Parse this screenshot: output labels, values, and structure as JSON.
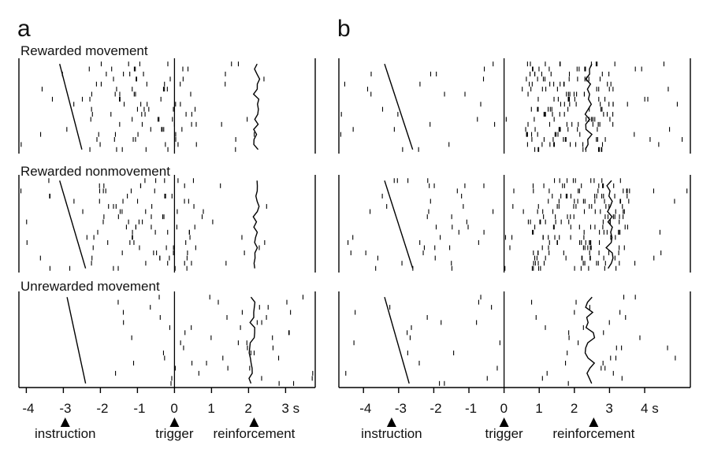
{
  "panel_labels": [
    "a",
    "b"
  ],
  "conditions": [
    "Rewarded movement",
    "Rewarded nonmovement",
    "Unrewarded movement"
  ],
  "events": [
    "instruction",
    "trigger",
    "reinforcement"
  ],
  "unit": "s",
  "ink": "#000000",
  "chart_data": [
    {
      "type": "scatter",
      "panel": "a",
      "xlim": [
        -4.2,
        3.8
      ],
      "xticks": [
        -4,
        -3,
        -2,
        -1,
        0,
        1,
        2,
        3
      ],
      "xtick_labels": [
        "-4",
        "-3",
        "-2",
        "-1",
        "0",
        "1",
        "2",
        "3 s"
      ],
      "event_times": {
        "instruction": -2.95,
        "trigger": 0,
        "reinforcement": 2.15
      },
      "rasters": [
        {
          "condition": "Rewarded movement",
          "trials": 18,
          "instruction_range": [
            -3.1,
            -2.5
          ],
          "reinforcement_range": [
            2.1,
            2.3
          ],
          "spike_windows": [
            [
              -4.2,
              2.6,
              0.35
            ],
            [
              -2.3,
              0.6,
              1.4
            ],
            [
              2.0,
              3.8,
              0.25
            ]
          ]
        },
        {
          "condition": "Rewarded nonmovement",
          "trials": 18,
          "instruction_range": [
            -3.1,
            -2.4
          ],
          "reinforcement_range": [
            2.1,
            2.3
          ],
          "spike_windows": [
            [
              -4.2,
              2.6,
              0.35
            ],
            [
              -2.3,
              0.6,
              1.4
            ],
            [
              2.0,
              3.8,
              0.25
            ]
          ]
        },
        {
          "condition": "Unrewarded movement",
          "trials": 18,
          "instruction_range": [
            -2.9,
            -2.4
          ],
          "reinforcement_range": [
            2.0,
            2.2
          ],
          "spike_windows": [
            [
              -4.2,
              -2.5,
              0.25
            ],
            [
              -1.6,
              0.3,
              0.35
            ],
            [
              0.3,
              3.8,
              0.55
            ]
          ]
        }
      ]
    },
    {
      "type": "scatter",
      "panel": "b",
      "xlim": [
        -4.7,
        5.3
      ],
      "xticks": [
        -4,
        -3,
        -2,
        -1,
        0,
        1,
        2,
        3,
        4
      ],
      "xtick_labels": [
        "-4",
        "-3",
        "-2",
        "-1",
        "0",
        "1",
        "2",
        "3",
        "4 s"
      ],
      "event_times": {
        "instruction": -3.2,
        "trigger": 0,
        "reinforcement": 2.55
      },
      "rasters": [
        {
          "condition": "Rewarded movement",
          "trials": 18,
          "instruction_range": [
            -3.4,
            -2.6
          ],
          "reinforcement_range": [
            2.3,
            2.5
          ],
          "spike_windows": [
            [
              -4.7,
              5.3,
              0.3
            ],
            [
              0.6,
              3.2,
              3.2
            ]
          ]
        },
        {
          "condition": "Rewarded nonmovement",
          "trials": 18,
          "instruction_range": [
            -3.4,
            -2.6
          ],
          "reinforcement_range": [
            2.9,
            3.1
          ],
          "spike_windows": [
            [
              -4.7,
              5.3,
              0.3
            ],
            [
              -2.8,
              -1.0,
              0.6
            ],
            [
              0.8,
              3.6,
              3.2
            ]
          ]
        },
        {
          "condition": "Unrewarded movement",
          "trials": 18,
          "instruction_range": [
            -3.4,
            -2.7
          ],
          "reinforcement_range": [
            2.3,
            2.6
          ],
          "spike_windows": [
            [
              -4.7,
              5.3,
              0.15
            ],
            [
              1.5,
              3.5,
              0.35
            ]
          ]
        }
      ]
    }
  ]
}
